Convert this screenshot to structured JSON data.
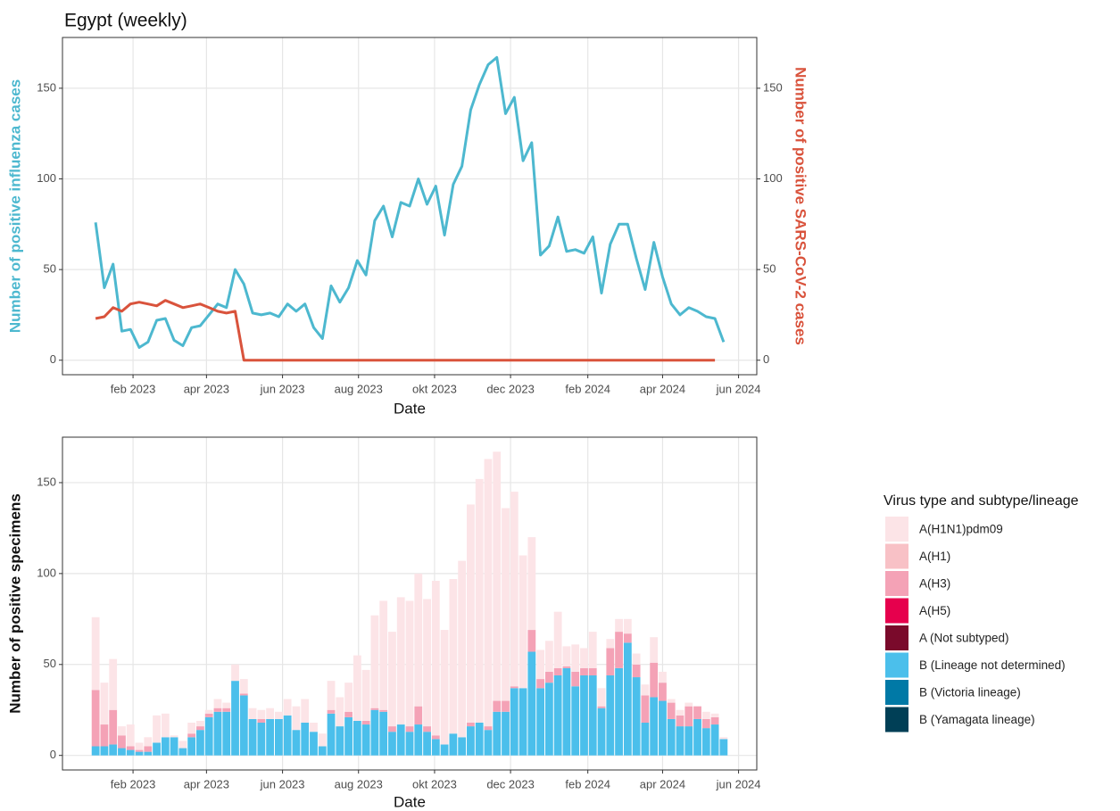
{
  "chart_data": [
    {
      "type": "line",
      "title": "Egypt (weekly)",
      "x_label": "Date",
      "y_label": "Number of positive influenza cases",
      "y2_label": "Number of positive SARS-CoV-2 cases",
      "categories": [
        null,
        null,
        null,
        null,
        null,
        null,
        null,
        null,
        null,
        null,
        null,
        null,
        null,
        null,
        null,
        null,
        null,
        null,
        null,
        null,
        null,
        null,
        null,
        null,
        null,
        null,
        null,
        null,
        null,
        null,
        null,
        null,
        null,
        null,
        null,
        null,
        null,
        null,
        null,
        null,
        null,
        null,
        null,
        null,
        null,
        null,
        null,
        null,
        null,
        null,
        null,
        null,
        null,
        null,
        null,
        null,
        null,
        null,
        null,
        null,
        null,
        null,
        null,
        null,
        null,
        null,
        null,
        null,
        null,
        null,
        null,
        null,
        null
      ],
      "xlim": [
        -3.8,
        75.8
      ],
      "xticks": [
        {
          "value": 4.29,
          "label": "feb 2023"
        },
        {
          "value": 12.71,
          "label": "apr 2023"
        },
        {
          "value": 21.43,
          "label": "jun 2023"
        },
        {
          "value": 30.14,
          "label": "aug 2023"
        },
        {
          "value": 38.86,
          "label": "okt 2023"
        },
        {
          "value": 47.57,
          "label": "dec 2023"
        },
        {
          "value": 56.43,
          "label": "feb 2024"
        },
        {
          "value": 65,
          "label": "apr 2024"
        },
        {
          "value": 73.71,
          "label": "jun 2024"
        }
      ],
      "ylim": [
        -8,
        178
      ],
      "yticks": [
        0,
        50,
        100,
        150
      ],
      "y2lim": [
        -8,
        178
      ],
      "y2ticks": [
        0,
        50,
        100,
        150
      ],
      "grid": true,
      "series": [
        {
          "color": "#4db8cf",
          "values": [
            76,
            40,
            53,
            16,
            17,
            7,
            10,
            22,
            23,
            11,
            8,
            18,
            19,
            25,
            31,
            29,
            50,
            42,
            26,
            25,
            26,
            24,
            31,
            27,
            31,
            18,
            12,
            41,
            32,
            40,
            55,
            47,
            77,
            85,
            68,
            87,
            85,
            100,
            86,
            96,
            69,
            97,
            107,
            138,
            152,
            163,
            167,
            136,
            145,
            110,
            120,
            58,
            63,
            79,
            60,
            61,
            59,
            68,
            37,
            64,
            75,
            75,
            56,
            39,
            65,
            46,
            31,
            25,
            29,
            27,
            24,
            23,
            10
          ]
        },
        {
          "color": "#d9533c",
          "axis": "y2",
          "values": [
            23,
            24,
            29,
            27,
            31,
            32,
            31,
            30,
            33,
            31,
            29,
            30,
            31,
            29,
            27,
            26,
            27,
            0,
            0,
            0,
            0,
            0,
            0,
            0,
            0,
            0,
            0,
            0,
            0,
            0,
            0,
            0,
            0,
            0,
            0,
            0,
            0,
            0,
            0,
            0,
            0,
            0,
            0,
            0,
            0,
            0,
            0,
            0,
            0,
            0,
            0,
            0,
            0,
            0,
            0,
            0,
            0,
            0,
            0,
            0,
            0,
            0,
            0,
            0,
            0,
            0,
            0,
            0,
            0,
            0,
            0,
            0,
            null
          ]
        }
      ]
    },
    {
      "type": "bar",
      "stacked": true,
      "x_label": "Date",
      "y_label": "Number of positive specimens",
      "legend_title": "Virus type and subtype/lineage",
      "legend": "right",
      "categories": [
        null,
        null,
        null,
        null,
        null,
        null,
        null,
        null,
        null,
        null,
        null,
        null,
        null,
        null,
        null,
        null,
        null,
        null,
        null,
        null,
        null,
        null,
        null,
        null,
        null,
        null,
        null,
        null,
        null,
        null,
        null,
        null,
        null,
        null,
        null,
        null,
        null,
        null,
        null,
        null,
        null,
        null,
        null,
        null,
        null,
        null,
        null,
        null,
        null,
        null,
        null,
        null,
        null,
        null,
        null,
        null,
        null,
        null,
        null,
        null,
        null,
        null,
        null,
        null,
        null,
        null,
        null,
        null,
        null,
        null,
        null,
        null,
        null
      ],
      "xlim": [
        -3.8,
        75.8
      ],
      "xticks": [
        {
          "value": 4.29,
          "label": "feb 2023"
        },
        {
          "value": 12.71,
          "label": "apr 2023"
        },
        {
          "value": 21.43,
          "label": "jun 2023"
        },
        {
          "value": 30.14,
          "label": "aug 2023"
        },
        {
          "value": 38.86,
          "label": "okt 2023"
        },
        {
          "value": 47.57,
          "label": "dec 2023"
        },
        {
          "value": 56.43,
          "label": "feb 2024"
        },
        {
          "value": 65,
          "label": "apr 2024"
        },
        {
          "value": 73.71,
          "label": "jun 2024"
        }
      ],
      "ylim": [
        -8,
        175
      ],
      "yticks": [
        0,
        50,
        100,
        150
      ],
      "grid": true,
      "series": [
        {
          "name": "A(H1N1)pdm09",
          "color": "#fce4e7",
          "values": [
            40,
            23,
            28,
            5,
            12,
            4,
            5,
            15,
            13,
            1,
            4,
            6,
            3,
            2,
            5,
            3,
            9,
            8,
            6,
            5,
            6,
            4,
            9,
            13,
            13,
            5,
            7,
            16,
            16,
            16,
            36,
            28,
            51,
            60,
            52,
            70,
            69,
            73,
            70,
            85,
            63,
            85,
            97,
            120,
            134,
            147,
            137,
            106,
            107,
            73,
            51,
            16,
            17,
            31,
            11,
            15,
            11,
            20,
            10,
            5,
            7,
            8,
            6,
            6,
            14,
            6,
            2,
            3,
            2,
            0,
            4,
            2,
            1
          ]
        },
        {
          "name": "A(H1)",
          "color": "#f8c1c6",
          "values": [
            0,
            0,
            0,
            0,
            0,
            0,
            0,
            0,
            0,
            0,
            0,
            0,
            0,
            0,
            0,
            0,
            0,
            0,
            0,
            0,
            0,
            0,
            0,
            0,
            0,
            0,
            0,
            0,
            0,
            0,
            0,
            0,
            0,
            0,
            0,
            0,
            0,
            0,
            0,
            0,
            0,
            0,
            0,
            0,
            0,
            0,
            0,
            0,
            0,
            0,
            0,
            0,
            0,
            0,
            0,
            0,
            0,
            0,
            0,
            0,
            0,
            0,
            0,
            0,
            0,
            0,
            0,
            0,
            0,
            0,
            0,
            0,
            0
          ]
        },
        {
          "name": "A(H3)",
          "color": "#f4a2b6",
          "values": [
            31,
            12,
            19,
            7,
            2,
            1,
            3,
            0,
            0,
            0,
            0,
            2,
            2,
            2,
            2,
            2,
            0,
            1,
            0,
            2,
            0,
            0,
            0,
            0,
            0,
            0,
            0,
            2,
            0,
            3,
            0,
            2,
            1,
            1,
            3,
            0,
            3,
            10,
            3,
            2,
            0,
            0,
            0,
            2,
            0,
            2,
            6,
            6,
            1,
            0,
            12,
            5,
            6,
            4,
            1,
            8,
            4,
            4,
            1,
            15,
            20,
            5,
            7,
            15,
            19,
            10,
            9,
            6,
            11,
            7,
            5,
            4,
            0
          ]
        },
        {
          "name": "A(H5)",
          "color": "#e6004d",
          "values": [
            0,
            0,
            0,
            0,
            0,
            0,
            0,
            0,
            0,
            0,
            0,
            0,
            0,
            0,
            0,
            0,
            0,
            0,
            0,
            0,
            0,
            0,
            0,
            0,
            0,
            0,
            0,
            0,
            0,
            0,
            0,
            0,
            0,
            0,
            0,
            0,
            0,
            0,
            0,
            0,
            0,
            0,
            0,
            0,
            0,
            0,
            0,
            0,
            0,
            0,
            0,
            0,
            0,
            0,
            0,
            0,
            0,
            0,
            0,
            0,
            0,
            0,
            0,
            0,
            0,
            0,
            0,
            0,
            0,
            0,
            0,
            0,
            0
          ]
        },
        {
          "name": "A (Not subtyped)",
          "color": "#7a0a2b",
          "values": [
            0,
            0,
            0,
            0,
            0,
            0,
            0,
            0,
            0,
            0,
            0,
            0,
            0,
            0,
            0,
            0,
            0,
            0,
            0,
            0,
            0,
            0,
            0,
            0,
            0,
            0,
            0,
            0,
            0,
            0,
            0,
            0,
            0,
            0,
            0,
            0,
            0,
            0,
            0,
            0,
            0,
            0,
            0,
            0,
            0,
            0,
            0,
            0,
            0,
            0,
            0,
            0,
            0,
            0,
            0,
            0,
            0,
            0,
            0,
            0,
            0,
            0,
            0,
            0,
            0,
            0,
            0,
            0,
            0,
            0,
            0,
            0,
            0
          ]
        },
        {
          "name": "B (Lineage not determined)",
          "color": "#4bbfeb",
          "values": [
            5,
            5,
            6,
            4,
            3,
            2,
            2,
            7,
            10,
            10,
            4,
            10,
            14,
            21,
            24,
            24,
            41,
            33,
            20,
            18,
            20,
            20,
            22,
            14,
            18,
            13,
            5,
            23,
            16,
            21,
            19,
            17,
            25,
            24,
            13,
            17,
            13,
            17,
            13,
            9,
            6,
            12,
            10,
            16,
            18,
            14,
            24,
            24,
            37,
            37,
            57,
            37,
            40,
            44,
            48,
            38,
            44,
            44,
            26,
            44,
            48,
            62,
            43,
            18,
            32,
            30,
            20,
            16,
            16,
            20,
            15,
            17,
            9
          ]
        },
        {
          "name": "B (Victoria lineage)",
          "color": "#0079a6",
          "values": [
            0,
            0,
            0,
            0,
            0,
            0,
            0,
            0,
            0,
            0,
            0,
            0,
            0,
            0,
            0,
            0,
            0,
            0,
            0,
            0,
            0,
            0,
            0,
            0,
            0,
            0,
            0,
            0,
            0,
            0,
            0,
            0,
            0,
            0,
            0,
            0,
            0,
            0,
            0,
            0,
            0,
            0,
            0,
            0,
            0,
            0,
            0,
            0,
            0,
            0,
            0,
            0,
            0,
            0,
            0,
            0,
            0,
            0,
            0,
            0,
            0,
            0,
            0,
            0,
            0,
            0,
            0,
            0,
            0,
            0,
            0,
            0,
            0
          ]
        },
        {
          "name": "B (Yamagata lineage)",
          "color": "#003f56",
          "values": [
            0,
            0,
            0,
            0,
            0,
            0,
            0,
            0,
            0,
            0,
            0,
            0,
            0,
            0,
            0,
            0,
            0,
            0,
            0,
            0,
            0,
            0,
            0,
            0,
            0,
            0,
            0,
            0,
            0,
            0,
            0,
            0,
            0,
            0,
            0,
            0,
            0,
            0,
            0,
            0,
            0,
            0,
            0,
            0,
            0,
            0,
            0,
            0,
            0,
            0,
            0,
            0,
            0,
            0,
            0,
            0,
            0,
            0,
            0,
            0,
            0,
            0,
            0,
            0,
            0,
            0,
            0,
            0,
            0,
            0,
            0,
            0,
            0
          ]
        }
      ]
    }
  ]
}
